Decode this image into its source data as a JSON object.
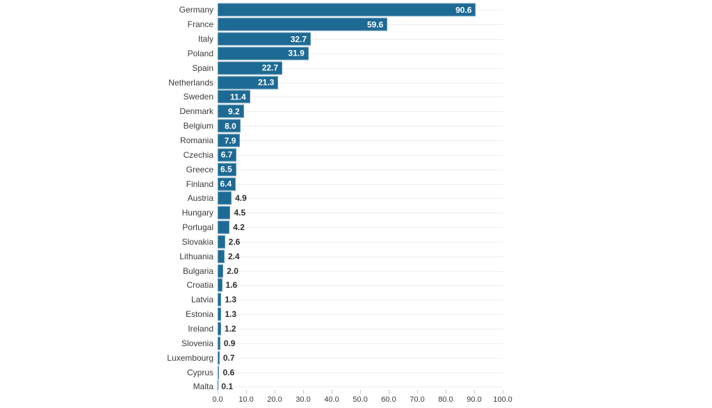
{
  "chart_data": {
    "type": "bar",
    "orientation": "horizontal",
    "title": "",
    "xlabel": "",
    "ylabel": "",
    "categories": [
      "Germany",
      "France",
      "Italy",
      "Poland",
      "Spain",
      "Netherlands",
      "Sweden",
      "Denmark",
      "Belgium",
      "Romania",
      "Czechia",
      "Greece",
      "Finland",
      "Austria",
      "Hungary",
      "Portugal",
      "Slovakia",
      "Lithuania",
      "Bulgaria",
      "Croatia",
      "Latvia",
      "Estonia",
      "Ireland",
      "Slovenia",
      "Luxembourg",
      "Cyprus",
      "Malta"
    ],
    "values": [
      90.6,
      59.6,
      32.7,
      31.9,
      22.7,
      21.3,
      11.4,
      9.2,
      8.0,
      7.9,
      6.7,
      6.5,
      6.4,
      4.9,
      4.5,
      4.2,
      2.6,
      2.4,
      2.0,
      1.6,
      1.3,
      1.3,
      1.2,
      0.9,
      0.7,
      0.6,
      0.1
    ],
    "values_display": [
      "90.6",
      "59.6",
      "32.7",
      "31.9",
      "22.7",
      "21.3",
      "11.4",
      "9.2",
      "8.0",
      "7.9",
      "6.7",
      "6.5",
      "6.4",
      "4.9",
      "4.5",
      "4.2",
      "2.6",
      "2.4",
      "2.0",
      "1.6",
      "1.3",
      "1.3",
      "1.2",
      "0.9",
      "0.7",
      "0.6",
      "0.1"
    ],
    "xlim": [
      0,
      100
    ],
    "x_ticks": [
      "0.0",
      "10.0",
      "20.0",
      "30.0",
      "40.0",
      "50.0",
      "60.0",
      "70.0",
      "80.0",
      "90.0",
      "100.0"
    ],
    "grid": "row-leader-lines",
    "legend": "none",
    "colors": {
      "bar": "#1d6a94",
      "value_inside": "#ffffff",
      "value_outside": "#2d2d2d",
      "category_label": "#3a3a3a",
      "axis_label": "#3a3a3a",
      "gridline": "#ededed",
      "tick_mark": "#c9c9c9",
      "background": "#ffffff"
    }
  }
}
